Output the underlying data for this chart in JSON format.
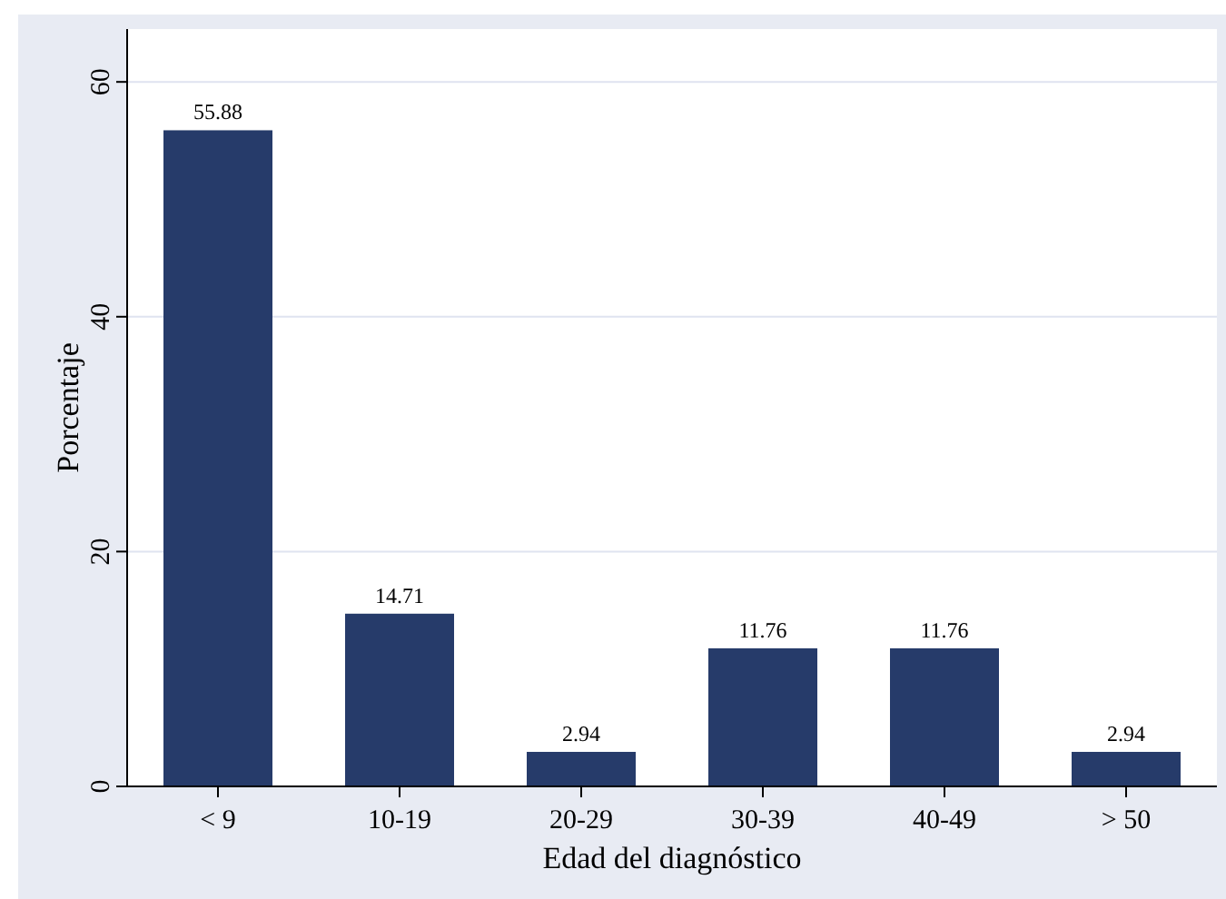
{
  "chart_data": {
    "type": "bar",
    "xlabel": "Edad del diagnóstico",
    "ylabel": "Porcentaje",
    "categories": [
      "< 9",
      "10-19",
      "20-29",
      "30-39",
      "40-49",
      "> 50"
    ],
    "values": [
      55.88,
      14.71,
      2.94,
      11.76,
      11.76,
      2.94
    ],
    "color": "#263b6a",
    "ylim": [
      0,
      64.5
    ],
    "yticks": [
      0,
      20,
      40,
      60
    ],
    "grid": "y",
    "data_labels": true
  }
}
